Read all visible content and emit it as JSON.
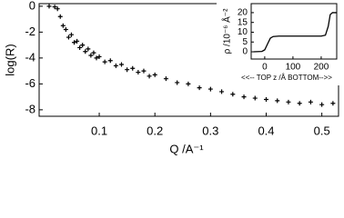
{
  "chart_data": [
    {
      "type": "scatter",
      "x_label": "Q /A⁻¹",
      "y_label": "log(R)",
      "color": "#000000",
      "x": [
        0.01,
        0.02,
        0.025,
        0.03,
        0.035,
        0.04,
        0.045,
        0.05,
        0.055,
        0.06,
        0.065,
        0.07,
        0.075,
        0.08,
        0.085,
        0.09,
        0.095,
        0.1,
        0.11,
        0.12,
        0.13,
        0.14,
        0.15,
        0.16,
        0.17,
        0.18,
        0.19,
        0.2,
        0.22,
        0.24,
        0.26,
        0.28,
        0.3,
        0.32,
        0.34,
        0.36,
        0.38,
        0.4,
        0.42,
        0.44,
        0.46,
        0.48,
        0.5,
        0.52
      ],
      "values": [
        0,
        -0.05,
        -0.2,
        -0.8,
        -1.5,
        -1.8,
        -2.4,
        -2.2,
        -2.8,
        -2.7,
        -3.2,
        -3.0,
        -3.5,
        -3.3,
        -3.8,
        -3.6,
        -4.0,
        -3.9,
        -4.3,
        -4.2,
        -4.6,
        -4.5,
        -4.9,
        -4.8,
        -5.1,
        -5.0,
        -5.4,
        -5.3,
        -5.6,
        -5.9,
        -6.0,
        -6.3,
        -6.4,
        -6.6,
        -6.8,
        -7.0,
        -7.1,
        -7.2,
        -7.3,
        -7.4,
        -7.5,
        -7.4,
        -7.6,
        -7.5
      ],
      "xlim": [
        -0.008,
        0.53
      ],
      "xticks": [
        0.1,
        0.2,
        0.3,
        0.4,
        0.5
      ],
      "ylim": [
        -8.5,
        0.2
      ],
      "yticks": [
        0,
        -2,
        -4,
        -6,
        -8
      ]
    },
    {
      "type": "line",
      "x_label": "<<-- TOP z /Å BOTTOM-->>",
      "y_label": "ρ /10⁻⁶ Å⁻²",
      "color": "#000000",
      "x": [
        -40,
        -10,
        0,
        10,
        20,
        30,
        50,
        100,
        150,
        200,
        215,
        225,
        232,
        240,
        255
      ],
      "values": [
        0,
        0.2,
        1,
        4,
        7,
        7.8,
        8,
        8,
        8,
        8,
        8.5,
        13,
        19,
        20,
        20
      ],
      "xlim": [
        -48,
        255
      ],
      "xticks": [
        0,
        100,
        200
      ],
      "ylim": [
        -3.7,
        24.6
      ],
      "yticks": [
        0,
        5,
        10,
        15,
        20
      ]
    }
  ]
}
